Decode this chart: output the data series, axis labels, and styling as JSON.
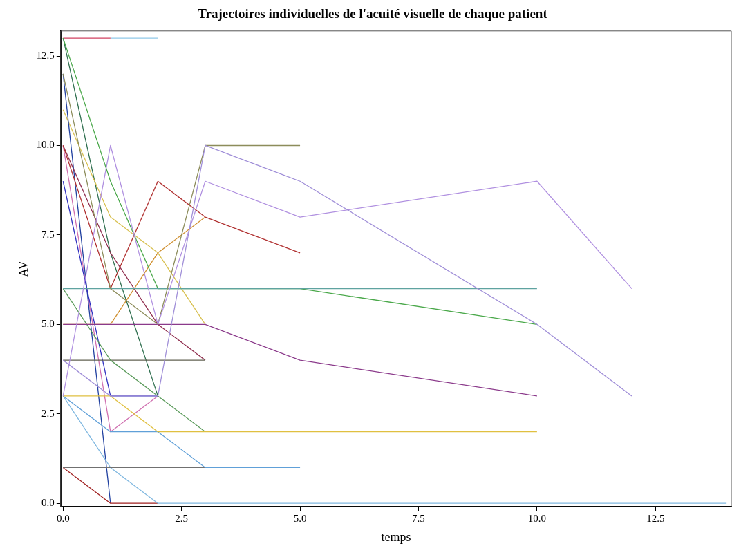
{
  "chart_data": {
    "type": "line",
    "title": "Trajectoires individuelles de l'acuité visuelle de chaque patient",
    "xlabel": "temps",
    "ylabel": "AV",
    "xlim": [
      -0.05,
      14.1
    ],
    "ylim": [
      -0.1,
      13.2
    ],
    "xticks": [
      {
        "value": 0,
        "label": "0.0"
      },
      {
        "value": 2.5,
        "label": "2.5"
      },
      {
        "value": 5,
        "label": "5.0"
      },
      {
        "value": 7.5,
        "label": "7.5"
      },
      {
        "value": 10,
        "label": "10.0"
      },
      {
        "value": 12.5,
        "label": "12.5"
      }
    ],
    "yticks": [
      {
        "value": 0,
        "label": "0.0"
      },
      {
        "value": 2.5,
        "label": "2.5"
      },
      {
        "value": 5,
        "label": "5.0"
      },
      {
        "value": 7.5,
        "label": "7.5"
      },
      {
        "value": 10,
        "label": "10.0"
      },
      {
        "value": 12.5,
        "label": "12.5"
      }
    ],
    "grid": false,
    "legend": false,
    "marker": "none",
    "line_style": "solid",
    "series": [
      {
        "color": "#a08fd8",
        "x": [
          0,
          1,
          2,
          3,
          5,
          10,
          12
        ],
        "values": [
          4,
          3,
          3,
          10,
          9,
          5,
          3
        ]
      },
      {
        "color": "#b090e0",
        "x": [
          0,
          1,
          2,
          3,
          5,
          10,
          12
        ],
        "values": [
          3,
          10,
          5,
          9,
          8,
          9,
          6
        ]
      },
      {
        "color": "#8c8c5a",
        "x": [
          0,
          1,
          2,
          3,
          5
        ],
        "values": [
          12,
          6,
          5,
          10,
          10
        ]
      },
      {
        "color": "#5fa3a0",
        "x": [
          0,
          1,
          2,
          3,
          5,
          10
        ],
        "values": [
          6,
          6,
          6,
          6,
          6,
          6
        ]
      },
      {
        "color": "#4aa84a",
        "x": [
          0,
          1,
          2,
          3,
          5,
          10
        ],
        "values": [
          13,
          9,
          6,
          6,
          6,
          5
        ]
      },
      {
        "color": "#8b3a8b",
        "x": [
          0,
          1,
          2,
          3,
          5,
          10
        ],
        "values": [
          5,
          5,
          5,
          5,
          4,
          3
        ]
      },
      {
        "color": "#b03030",
        "x": [
          0,
          1,
          2,
          3,
          5
        ],
        "values": [
          10,
          6,
          9,
          8,
          7
        ]
      },
      {
        "color": "#e0c040",
        "x": [
          0,
          1,
          2,
          3,
          5,
          10
        ],
        "values": [
          3,
          3,
          2,
          2,
          2,
          2
        ]
      },
      {
        "color": "#5a9a5a",
        "x": [
          0,
          1,
          2,
          3
        ],
        "values": [
          6,
          4,
          3,
          2
        ]
      },
      {
        "color": "#60a0d8",
        "x": [
          0,
          1,
          2,
          3,
          5
        ],
        "values": [
          3,
          2,
          2,
          1,
          1
        ]
      },
      {
        "color": "#707070",
        "x": [
          0,
          1,
          2,
          3
        ],
        "values": [
          1,
          1,
          1,
          1
        ]
      },
      {
        "color": "#d04060",
        "x": [
          0,
          1
        ],
        "values": [
          13,
          13
        ]
      },
      {
        "color": "#8fc8e8",
        "x": [
          1,
          2
        ],
        "values": [
          13,
          13
        ]
      },
      {
        "color": "#80b8e0",
        "x": [
          0,
          1,
          2,
          14
        ],
        "values": [
          3,
          1,
          0,
          0
        ]
      },
      {
        "color": "#a02020",
        "x": [
          0,
          1,
          2
        ],
        "values": [
          1,
          0,
          0
        ]
      },
      {
        "color": "#606050",
        "x": [
          0,
          1,
          2,
          3
        ],
        "values": [
          4,
          4,
          4,
          4
        ]
      },
      {
        "color": "#903050",
        "x": [
          0,
          1,
          2,
          3
        ],
        "values": [
          10,
          7,
          5,
          4
        ]
      },
      {
        "color": "#d09030",
        "x": [
          0,
          1,
          2,
          3
        ],
        "values": [
          5,
          5,
          7,
          8
        ]
      },
      {
        "color": "#3030c0",
        "x": [
          0,
          1,
          2
        ],
        "values": [
          9,
          3,
          3
        ]
      },
      {
        "color": "#2040a0",
        "x": [
          0,
          1
        ],
        "values": [
          12,
          0
        ]
      },
      {
        "color": "#d8c050",
        "x": [
          0,
          1,
          2,
          3
        ],
        "values": [
          11,
          8,
          7,
          5
        ]
      },
      {
        "color": "#d070b0",
        "x": [
          0,
          1,
          2
        ],
        "values": [
          10,
          2,
          3
        ]
      },
      {
        "color": "#2f6f4f",
        "x": [
          0,
          1,
          2
        ],
        "values": [
          13,
          7,
          3
        ]
      }
    ]
  }
}
